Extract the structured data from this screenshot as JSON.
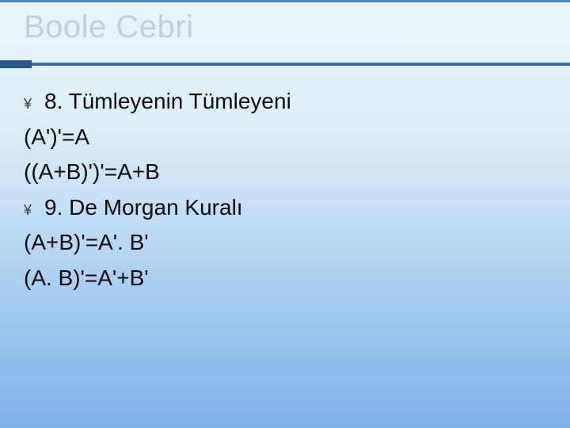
{
  "slide": {
    "title": "Boole Cebri",
    "title_color": "#c0cfdd",
    "title_fontsize": 40,
    "top_line_color": "#4a86c5",
    "divider_left_color": "#2a5a8a",
    "divider_right_color": "#3b6fa8",
    "background_gradient": [
      "#e9f5fa",
      "#dbeef8",
      "#bcd9f2",
      "#9dc6ed",
      "#7fb2e7"
    ],
    "body_fontsize": 28,
    "body_color": "#0a0a0a",
    "bullet_glyph": "¥",
    "lines": [
      {
        "bullet": true,
        "text": "8. Tümleyenin Tümleyeni"
      },
      {
        "bullet": false,
        "text": "(A')'=A"
      },
      {
        "bullet": false,
        "text": "((A+B)')'=A+B"
      },
      {
        "bullet": true,
        "text": "9. De Morgan Kuralı"
      },
      {
        "bullet": false,
        "text": "(A+B)'=A'. B'"
      },
      {
        "bullet": false,
        "text": "(A. B)'=A'+B'"
      }
    ]
  }
}
